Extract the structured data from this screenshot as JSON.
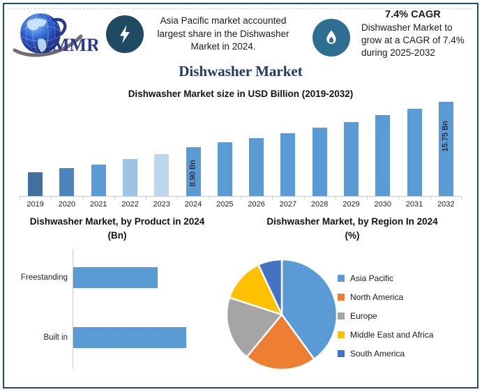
{
  "accent_colors": {
    "frame_border": "#1d4e66",
    "title_navy": "#1f3864",
    "badge_dark": "#1e4a62",
    "badge_teal": "#2d6e91",
    "logo_blue": "#2b3990",
    "bar_blue": "#5b9bd5"
  },
  "header": {
    "logo_text": "MMR",
    "callout_1": {
      "icon": "lightning-icon",
      "text": "Asia Pacific market accounted largest share in the Dishwasher Market in 2024."
    },
    "callout_2": {
      "icon": "flame-icon",
      "heading": "7.4% CAGR",
      "text": "Dishwasher Market to grow at a CAGR of 7.4% during 2025-2032"
    }
  },
  "page_title": "Dishwasher Market",
  "chart_data": [
    {
      "id": "market_size",
      "type": "bar",
      "title": "Dishwasher Market size in USD Billion (2019-2032)",
      "ylabel": "USD Billion",
      "categories": [
        "2019",
        "2020",
        "2021",
        "2022",
        "2023",
        "2024",
        "2025",
        "2026",
        "2027",
        "2028",
        "2029",
        "2030",
        "2031",
        "2032"
      ],
      "values": [
        5.1,
        5.7,
        6.3,
        7.1,
        7.8,
        8.9,
        9.6,
        10.3,
        11.0,
        11.8,
        12.7,
        13.7,
        14.7,
        15.75
      ],
      "values_estimated_except_labeled": true,
      "bar_labels": [
        {
          "index": 5,
          "text": "8.90 Bn",
          "label_pos": 0.46
        },
        {
          "index": 13,
          "text": "15.75 Bn",
          "label_pos": 0.63
        }
      ],
      "bar_colors": [
        "#41719c",
        "#4a84bc",
        "#5b9bd5",
        "#9dc3e6",
        "#bdd7ee",
        "#5b9bd5",
        "#5b9bd5",
        "#5b9bd5",
        "#5b9bd5",
        "#5b9bd5",
        "#5b9bd5",
        "#5b9bd5",
        "#5b9bd5",
        "#5b9bd5"
      ],
      "ylim_render": [
        1.5,
        15.75
      ],
      "grid": false,
      "legend": false
    },
    {
      "id": "by_product",
      "type": "bar",
      "orientation": "horizontal",
      "title": "Dishwasher Market, by Product in 2024",
      "title_line2": "(Bn)",
      "categories": [
        "Freestanding",
        "Built in"
      ],
      "values": [
        3.8,
        5.1
      ],
      "values_estimated": true,
      "bar_color": "#5b9bd5",
      "xlim_render": [
        0,
        6.8
      ],
      "grid": false,
      "legend": false
    },
    {
      "id": "by_region",
      "type": "pie",
      "title": "Dishwasher Market, by Region In 2024",
      "title_line2": "(%)",
      "labels": [
        "Asia Pacific",
        "North America",
        "Europe",
        "Middle East and Africa",
        "South America"
      ],
      "values": [
        40,
        21,
        19,
        13,
        7
      ],
      "values_estimated": true,
      "colors": [
        "#5b9bd5",
        "#ed7d31",
        "#a5a5a5",
        "#ffc000",
        "#4472c4"
      ],
      "legend_position": "right"
    }
  ]
}
